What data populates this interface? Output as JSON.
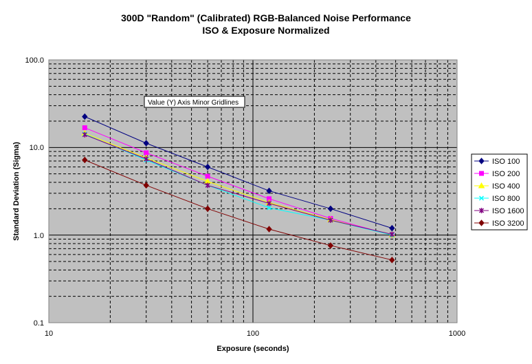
{
  "chart_data": {
    "type": "line",
    "title": "300D \"Random\" (Calibrated) RGB-Balanced Noise Performance",
    "subtitle": "ISO & Exposure Normalized",
    "xlabel": "Exposure (seconds)",
    "ylabel": "Standard Deviation (Sigma)",
    "x_scale": "log",
    "y_scale": "log",
    "xlim": [
      10,
      1000
    ],
    "ylim": [
      0.1,
      100
    ],
    "x_tick_labels": [
      "10",
      "100",
      "1000"
    ],
    "y_tick_labels": [
      "0.1",
      "1.0",
      "10.0",
      "100.0"
    ],
    "grid": true,
    "legend_position": "right",
    "plot_background": "#c0c0c0",
    "tooltip": "Value (Y) Axis Minor Gridlines",
    "x": [
      15,
      30,
      60,
      120,
      240,
      480
    ],
    "series": [
      {
        "name": "ISO 100",
        "color": "#000080",
        "marker": "diamond",
        "values": [
          22.5,
          11.2,
          6.0,
          3.2,
          2.0,
          1.2
        ]
      },
      {
        "name": "ISO 200",
        "color": "#ff00ff",
        "marker": "square",
        "values": [
          16.8,
          8.7,
          4.7,
          2.6,
          1.55,
          1.0
        ]
      },
      {
        "name": "ISO 400",
        "color": "#ffff00",
        "marker": "triangle",
        "values": [
          14.5,
          7.6,
          4.1,
          2.35,
          1.5,
          1.0
        ]
      },
      {
        "name": "ISO 800",
        "color": "#00ffff",
        "marker": "x",
        "values": [
          14.2,
          7.2,
          3.7,
          2.05,
          1.48,
          1.0
        ]
      },
      {
        "name": "ISO 1600",
        "color": "#800080",
        "marker": "star",
        "values": [
          14.0,
          7.4,
          3.7,
          2.3,
          1.48,
          1.02
        ]
      },
      {
        "name": "ISO 3200",
        "color": "#800000",
        "marker": "diamond",
        "values": [
          7.2,
          3.7,
          2.0,
          1.17,
          0.76,
          0.52
        ]
      }
    ]
  }
}
